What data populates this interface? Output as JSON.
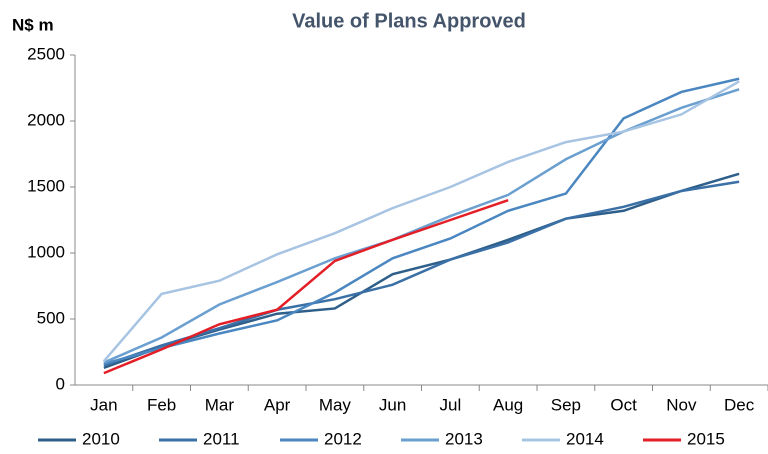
{
  "chart_data": {
    "type": "line",
    "title": "Value of Plans Approved",
    "y_label": "N$ m",
    "categories": [
      "Jan",
      "Feb",
      "Mar",
      "Apr",
      "May",
      "Jun",
      "Jul",
      "Aug",
      "Sep",
      "Oct",
      "Nov",
      "Dec"
    ],
    "series": [
      {
        "name": "2010",
        "color": "#2e5f8a",
        "values": [
          130,
          290,
          420,
          540,
          580,
          840,
          950,
          1100,
          1260,
          1320,
          1470,
          1600
        ]
      },
      {
        "name": "2011",
        "color": "#3a70a6",
        "values": [
          150,
          300,
          430,
          570,
          650,
          760,
          950,
          1080,
          1260,
          1350,
          1470,
          1540
        ]
      },
      {
        "name": "2012",
        "color": "#4a86c0",
        "values": [
          160,
          280,
          390,
          490,
          700,
          960,
          1110,
          1320,
          1450,
          2020,
          2220,
          2320
        ]
      },
      {
        "name": "2013",
        "color": "#6a9fd0",
        "values": [
          170,
          360,
          610,
          780,
          960,
          1100,
          1280,
          1440,
          1710,
          1920,
          2100,
          2240
        ]
      },
      {
        "name": "2014",
        "color": "#a8c4e3",
        "values": [
          180,
          690,
          790,
          990,
          1150,
          1340,
          1500,
          1690,
          1840,
          1920,
          2050,
          2300
        ]
      },
      {
        "name": "2015",
        "color": "#e41e26",
        "values": [
          90,
          270,
          460,
          570,
          940,
          1100,
          1250,
          1400,
          null,
          null,
          null,
          null
        ]
      }
    ],
    "ylim": [
      0,
      2500
    ],
    "yticks": [
      0,
      500,
      1000,
      1500,
      2000,
      2500
    ],
    "grid": false,
    "legend": "bottom"
  }
}
